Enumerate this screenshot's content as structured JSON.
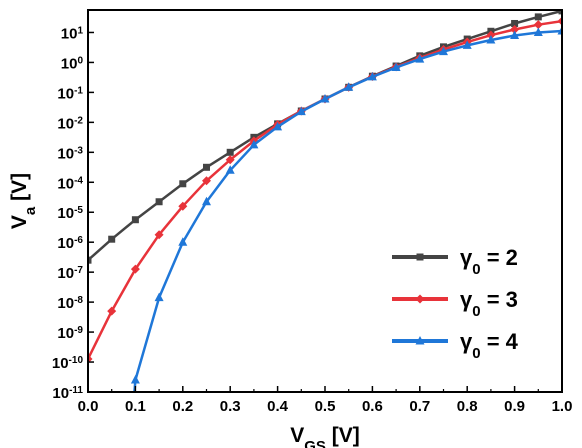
{
  "chart_data": {
    "type": "line",
    "xlabel": {
      "main": "V",
      "sub": "GS",
      "unit": " [V]"
    },
    "ylabel": {
      "main": "V",
      "sub": "a",
      "unit": " [V]"
    },
    "xlim": [
      0,
      1
    ],
    "ylim_log10": [
      -11,
      1.75
    ],
    "y_scale": "log",
    "grid": false,
    "legend_position": "bottom-right",
    "x_ticks": [
      "0.0",
      "0.1",
      "0.2",
      "0.3",
      "0.4",
      "0.5",
      "0.6",
      "0.7",
      "0.8",
      "0.9",
      "1.0"
    ],
    "y_ticks": [
      {
        "base": "10",
        "exp": "1",
        "value": 1
      },
      {
        "base": "10",
        "exp": "0",
        "value": 0
      },
      {
        "base": "10",
        "exp": "-1",
        "value": -1
      },
      {
        "base": "10",
        "exp": "-2",
        "value": -2
      },
      {
        "base": "10",
        "exp": "-3",
        "value": -3
      },
      {
        "base": "10",
        "exp": "-4",
        "value": -4
      },
      {
        "base": "10",
        "exp": "-5",
        "value": -5
      },
      {
        "base": "10",
        "exp": "-6",
        "value": -6
      },
      {
        "base": "10",
        "exp": "-7",
        "value": -7
      },
      {
        "base": "10",
        "exp": "-8",
        "value": -8
      },
      {
        "base": "10",
        "exp": "-9",
        "value": -9
      },
      {
        "base": "10",
        "exp": "-10",
        "value": -10
      },
      {
        "base": "10",
        "exp": "-11",
        "value": -11
      }
    ],
    "series": [
      {
        "legend": {
          "sym": "γ",
          "sub": "0",
          "rest": " = 2"
        },
        "color": "#444444",
        "marker": "square",
        "x": [
          0,
          0.05,
          0.1,
          0.15,
          0.2,
          0.25,
          0.3,
          0.35,
          0.4,
          0.45,
          0.5,
          0.55,
          0.6,
          0.65,
          0.7,
          0.75,
          0.8,
          0.85,
          0.9,
          0.95,
          1.0
        ],
        "log10_y": [
          -6.6,
          -5.9,
          -5.25,
          -4.65,
          -4.05,
          -3.5,
          -3.0,
          -2.5,
          -2.05,
          -1.62,
          -1.22,
          -0.83,
          -0.46,
          -0.12,
          0.22,
          0.52,
          0.78,
          1.04,
          1.3,
          1.52,
          1.72
        ]
      },
      {
        "legend": {
          "sym": "γ",
          "sub": "0",
          "rest": " = 3"
        },
        "color": "#e8333a",
        "marker": "diamond",
        "x": [
          0,
          0.05,
          0.1,
          0.15,
          0.2,
          0.25,
          0.3,
          0.35,
          0.4,
          0.45,
          0.5,
          0.55,
          0.6,
          0.65,
          0.7,
          0.75,
          0.8,
          0.85,
          0.9,
          0.95,
          1.0
        ],
        "log10_y": [
          -9.9,
          -8.3,
          -6.9,
          -5.75,
          -4.8,
          -3.95,
          -3.25,
          -2.62,
          -2.07,
          -1.62,
          -1.22,
          -0.83,
          -0.47,
          -0.15,
          0.15,
          0.43,
          0.68,
          0.91,
          1.1,
          1.26,
          1.38
        ]
      },
      {
        "legend": {
          "sym": "γ",
          "sub": "0",
          "rest": " = 4"
        },
        "color": "#1f77d8",
        "marker": "triangle",
        "x": [
          0.1,
          0.15,
          0.2,
          0.25,
          0.3,
          0.35,
          0.4,
          0.45,
          0.5,
          0.55,
          0.6,
          0.65,
          0.7,
          0.75,
          0.8,
          0.85,
          0.9,
          0.95,
          1.0
        ],
        "log10_y": [
          -10.6,
          -7.85,
          -6.0,
          -4.65,
          -3.6,
          -2.75,
          -2.15,
          -1.64,
          -1.22,
          -0.83,
          -0.48,
          -0.17,
          0.11,
          0.36,
          0.57,
          0.75,
          0.9,
          1.0,
          1.05
        ]
      }
    ]
  }
}
